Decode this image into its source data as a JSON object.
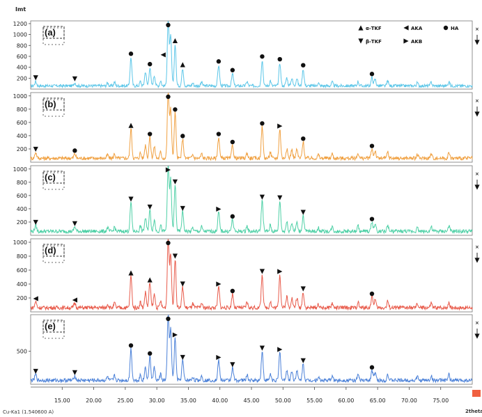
{
  "chart_data": {
    "type": "line",
    "ylabel": "Imt",
    "xunit": "2theta",
    "source_label": "Cu-Ka1 (1.540600 A)",
    "xlim": [
      10,
      80
    ],
    "xticks": [
      "15.00",
      "20.00",
      "25.00",
      "30.00",
      "35.00",
      "40.00",
      "45.00",
      "50.00",
      "55.00",
      "60.00",
      "65.00",
      "70.00",
      "75.00"
    ],
    "legend": [
      {
        "marker": "triangle-up",
        "label": "α-TKF"
      },
      {
        "marker": "triangle-left",
        "label": "AKA"
      },
      {
        "marker": "circle",
        "label": "HA"
      },
      {
        "marker": "triangle-down",
        "label": "β-TKF"
      },
      {
        "marker": "triangle-right",
        "label": "AKB"
      }
    ],
    "peaks_2theta": [
      10.8,
      17.0,
      25.9,
      28.2,
      28.9,
      29.6,
      31.8,
      32.2,
      32.9,
      34.1,
      39.8,
      42.0,
      46.7,
      49.5,
      50.6,
      51.4,
      52.2,
      53.2,
      64.1,
      64.6
    ],
    "series": [
      {
        "label": "(a)",
        "color": "#5bc6e8",
        "yticks": [
          200,
          400,
          600,
          800,
          1000,
          1200
        ],
        "ylim": [
          0,
          1250
        ],
        "intensities": [
          80,
          60,
          520,
          260,
          330,
          190,
          1200,
          900,
          760,
          320,
          380,
          220,
          470,
          420,
          150,
          140,
          140,
          310,
          150,
          120
        ],
        "markers": [
          {
            "x": 10.8,
            "m": "triangle-down"
          },
          {
            "x": 17.0,
            "m": "triangle-down"
          },
          {
            "x": 25.9,
            "m": "circle"
          },
          {
            "x": 28.9,
            "m": "circle"
          },
          {
            "x": 31.0,
            "m": "triangle-left"
          },
          {
            "x": 31.8,
            "m": "circle"
          },
          {
            "x": 32.9,
            "m": "triangle-up"
          },
          {
            "x": 34.1,
            "m": "triangle-up"
          },
          {
            "x": 39.8,
            "m": "circle"
          },
          {
            "x": 42.0,
            "m": "circle"
          },
          {
            "x": 46.7,
            "m": "circle"
          },
          {
            "x": 49.5,
            "m": "circle"
          },
          {
            "x": 53.2,
            "m": "circle"
          },
          {
            "x": 64.1,
            "m": "circle"
          }
        ]
      },
      {
        "label": "(b)",
        "color": "#f0a040",
        "yticks": [
          200,
          400,
          600,
          800,
          1000
        ],
        "ylim": [
          0,
          1050
        ],
        "intensities": [
          90,
          70,
          450,
          200,
          320,
          170,
          1000,
          760,
          690,
          290,
          320,
          200,
          480,
          440,
          140,
          130,
          130,
          250,
          140,
          110
        ],
        "markers": [
          {
            "x": 10.8,
            "m": "triangle-down"
          },
          {
            "x": 17.0,
            "m": "circle"
          },
          {
            "x": 25.9,
            "m": "triangle-up"
          },
          {
            "x": 28.9,
            "m": "circle"
          },
          {
            "x": 31.8,
            "m": "circle"
          },
          {
            "x": 32.9,
            "m": "circle"
          },
          {
            "x": 34.1,
            "m": "circle"
          },
          {
            "x": 39.8,
            "m": "circle"
          },
          {
            "x": 42.0,
            "m": "circle"
          },
          {
            "x": 46.7,
            "m": "circle"
          },
          {
            "x": 49.5,
            "m": "triangle-right"
          },
          {
            "x": 53.2,
            "m": "circle"
          },
          {
            "x": 64.1,
            "m": "circle"
          }
        ]
      },
      {
        "label": "(c)",
        "color": "#4ed0a6",
        "yticks": [
          200,
          400,
          600,
          800,
          1000
        ],
        "ylim": [
          0,
          1050
        ],
        "intensities": [
          90,
          70,
          440,
          200,
          320,
          170,
          1000,
          780,
          700,
          300,
          290,
          180,
          470,
          460,
          140,
          130,
          130,
          240,
          140,
          110
        ],
        "markers": [
          {
            "x": 10.8,
            "m": "triangle-down"
          },
          {
            "x": 17.0,
            "m": "triangle-down"
          },
          {
            "x": 25.9,
            "m": "triangle-down"
          },
          {
            "x": 28.9,
            "m": "triangle-down"
          },
          {
            "x": 31.8,
            "m": "triangle-right"
          },
          {
            "x": 32.9,
            "m": "triangle-down"
          },
          {
            "x": 34.1,
            "m": "triangle-down"
          },
          {
            "x": 39.8,
            "m": "triangle-right"
          },
          {
            "x": 42.0,
            "m": "circle"
          },
          {
            "x": 46.7,
            "m": "triangle-down"
          },
          {
            "x": 49.5,
            "m": "triangle-down"
          },
          {
            "x": 53.2,
            "m": "triangle-down"
          },
          {
            "x": 64.1,
            "m": "circle"
          }
        ]
      },
      {
        "label": "(d)",
        "color": "#e85a4a",
        "yticks": [
          200,
          400,
          600,
          800,
          1000
        ],
        "ylim": [
          0,
          1050
        ],
        "intensities": [
          90,
          70,
          460,
          220,
          360,
          190,
          1000,
          760,
          700,
          300,
          300,
          200,
          480,
          480,
          160,
          140,
          140,
          230,
          160,
          120
        ],
        "markers": [
          {
            "x": 10.8,
            "m": "triangle-left"
          },
          {
            "x": 17.0,
            "m": "triangle-left"
          },
          {
            "x": 25.9,
            "m": "triangle-up"
          },
          {
            "x": 28.9,
            "m": "triangle-up"
          },
          {
            "x": 31.8,
            "m": "circle"
          },
          {
            "x": 32.9,
            "m": "triangle-down"
          },
          {
            "x": 34.1,
            "m": "triangle-down"
          },
          {
            "x": 39.8,
            "m": "triangle-right"
          },
          {
            "x": 42.0,
            "m": "circle"
          },
          {
            "x": 46.7,
            "m": "triangle-down"
          },
          {
            "x": 49.5,
            "m": "triangle-right"
          },
          {
            "x": 53.2,
            "m": "triangle-down"
          },
          {
            "x": 64.1,
            "m": "circle"
          }
        ]
      },
      {
        "label": "(e)",
        "color": "#4a80d8",
        "yticks": [
          500
        ],
        "ylim": [
          0,
          1050
        ],
        "intensities": [
          90,
          70,
          480,
          200,
          360,
          190,
          1000,
          760,
          640,
          300,
          300,
          190,
          440,
          420,
          150,
          140,
          140,
          250,
          150,
          120
        ],
        "markers": [
          {
            "x": 10.8,
            "m": "triangle-down"
          },
          {
            "x": 17.0,
            "m": "triangle-down"
          },
          {
            "x": 25.9,
            "m": "circle"
          },
          {
            "x": 28.9,
            "m": "circle"
          },
          {
            "x": 31.8,
            "m": "circle"
          },
          {
            "x": 32.9,
            "m": "triangle-right"
          },
          {
            "x": 34.1,
            "m": "triangle-down"
          },
          {
            "x": 39.8,
            "m": "triangle-right"
          },
          {
            "x": 42.0,
            "m": "triangle-down"
          },
          {
            "x": 46.7,
            "m": "triangle-down"
          },
          {
            "x": 49.5,
            "m": "triangle-right"
          },
          {
            "x": 53.2,
            "m": "triangle-down"
          },
          {
            "x": 64.1,
            "m": "circle"
          }
        ]
      }
    ]
  }
}
